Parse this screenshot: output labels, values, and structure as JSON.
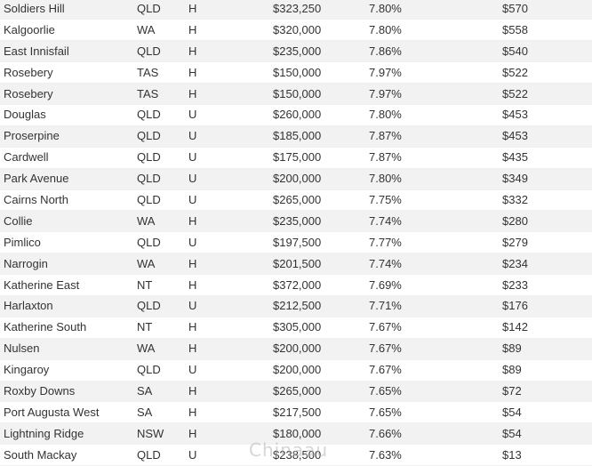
{
  "table": {
    "rows": [
      {
        "suburb": "Soldiers Hill",
        "state": "QLD",
        "type": "H",
        "price": "$323,250",
        "yield": "7.80%",
        "rent": "$570"
      },
      {
        "suburb": "Kalgoorlie",
        "state": "WA",
        "type": "H",
        "price": "$320,000",
        "yield": "7.80%",
        "rent": "$558"
      },
      {
        "suburb": "East Innisfail",
        "state": "QLD",
        "type": "H",
        "price": "$235,000",
        "yield": "7.86%",
        "rent": "$540"
      },
      {
        "suburb": "Rosebery",
        "state": "TAS",
        "type": "H",
        "price": "$150,000",
        "yield": "7.97%",
        "rent": "$522"
      },
      {
        "suburb": "Rosebery",
        "state": "TAS",
        "type": "H",
        "price": "$150,000",
        "yield": "7.97%",
        "rent": "$522"
      },
      {
        "suburb": "Douglas",
        "state": "QLD",
        "type": "U",
        "price": "$260,000",
        "yield": "7.80%",
        "rent": "$453"
      },
      {
        "suburb": "Proserpine",
        "state": "QLD",
        "type": "U",
        "price": "$185,000",
        "yield": "7.87%",
        "rent": "$453"
      },
      {
        "suburb": "Cardwell",
        "state": "QLD",
        "type": "U",
        "price": "$175,000",
        "yield": "7.87%",
        "rent": "$435"
      },
      {
        "suburb": "Park Avenue",
        "state": "QLD",
        "type": "U",
        "price": "$200,000",
        "yield": "7.80%",
        "rent": "$349"
      },
      {
        "suburb": "Cairns North",
        "state": "QLD",
        "type": "U",
        "price": "$265,000",
        "yield": "7.75%",
        "rent": "$332"
      },
      {
        "suburb": "Collie",
        "state": "WA",
        "type": "H",
        "price": "$235,000",
        "yield": "7.74%",
        "rent": "$280"
      },
      {
        "suburb": "Pimlico",
        "state": "QLD",
        "type": "U",
        "price": "$197,500",
        "yield": "7.77%",
        "rent": "$279"
      },
      {
        "suburb": "Narrogin",
        "state": "WA",
        "type": "H",
        "price": "$201,500",
        "yield": "7.74%",
        "rent": "$234"
      },
      {
        "suburb": "Katherine East",
        "state": "NT",
        "type": "H",
        "price": "$372,000",
        "yield": "7.69%",
        "rent": "$233"
      },
      {
        "suburb": "Harlaxton",
        "state": "QLD",
        "type": "U",
        "price": "$212,500",
        "yield": "7.71%",
        "rent": "$176"
      },
      {
        "suburb": "Katherine South",
        "state": "NT",
        "type": "H",
        "price": "$305,000",
        "yield": "7.67%",
        "rent": "$142"
      },
      {
        "suburb": "Nulsen",
        "state": "WA",
        "type": "H",
        "price": "$200,000",
        "yield": "7.67%",
        "rent": "$89"
      },
      {
        "suburb": "Kingaroy",
        "state": "QLD",
        "type": "U",
        "price": "$200,000",
        "yield": "7.67%",
        "rent": "$89"
      },
      {
        "suburb": "Roxby Downs",
        "state": "SA",
        "type": "H",
        "price": "$265,000",
        "yield": "7.65%",
        "rent": "$72"
      },
      {
        "suburb": "Port Augusta West",
        "state": "SA",
        "type": "H",
        "price": "$217,500",
        "yield": "7.65%",
        "rent": "$54"
      },
      {
        "suburb": "Lightning Ridge",
        "state": "NSW",
        "type": "H",
        "price": "$180,000",
        "yield": "7.66%",
        "rent": "$54"
      },
      {
        "suburb": "South Mackay",
        "state": "QLD",
        "type": "U",
        "price": "$238,500",
        "yield": "7.63%",
        "rent": "$13"
      }
    ]
  },
  "watermark": {
    "text": "Chinaau"
  }
}
